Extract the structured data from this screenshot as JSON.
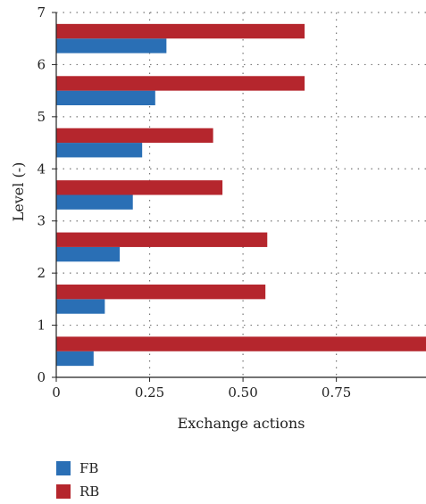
{
  "chart_data": {
    "type": "bar",
    "orientation": "horizontal",
    "xlabel": "Exchange actions",
    "ylabel": "Level (-)",
    "xlim": [
      0,
      0.99
    ],
    "ylim": [
      0,
      7
    ],
    "x_ticks": [
      "0",
      "0.25",
      "0.50",
      "0.75"
    ],
    "x_tick_values": [
      0,
      0.25,
      0.5,
      0.75
    ],
    "y_ticks": [
      "0",
      "1",
      "2",
      "3",
      "4",
      "5",
      "6",
      "7"
    ],
    "y_tick_values": [
      0,
      1,
      2,
      3,
      4,
      5,
      6,
      7
    ],
    "grid": true,
    "legend_position": "below",
    "categories": [
      0.5,
      1.5,
      2.5,
      3.5,
      4.5,
      5.5,
      6.5
    ],
    "series": [
      {
        "name": "FB",
        "color": "#2a6fb5",
        "values": [
          0.1,
          0.13,
          0.17,
          0.205,
          0.23,
          0.265,
          0.295
        ]
      },
      {
        "name": "RB",
        "color": "#b5262d",
        "values": [
          0.99,
          0.56,
          0.565,
          0.445,
          0.42,
          0.665,
          0.665
        ]
      }
    ]
  }
}
